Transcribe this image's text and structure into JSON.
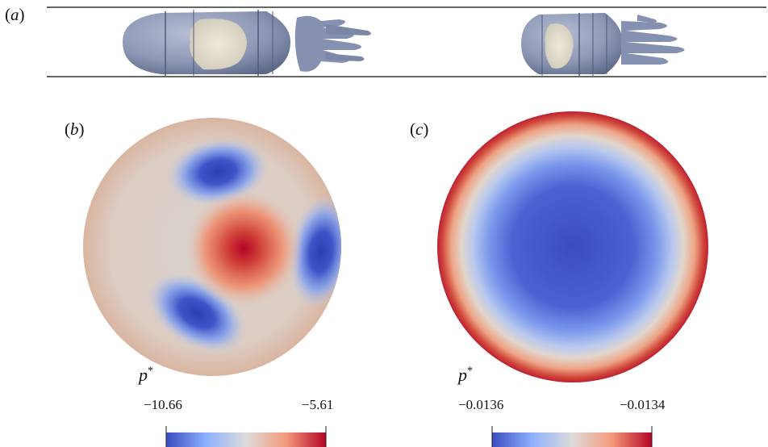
{
  "panels": {
    "a": {
      "label_open": "(",
      "letter": "a",
      "label_close": ")"
    },
    "b": {
      "label_open": "(",
      "letter": "b",
      "label_close": ")",
      "colorbar": {
        "symbol": "p",
        "superscript": "*",
        "min": "−10.66",
        "max": "−5.61"
      }
    },
    "c": {
      "label_open": "(",
      "letter": "c",
      "label_close": ")",
      "colorbar": {
        "symbol": "p",
        "superscript": "*",
        "min": "−0.0136",
        "max": "−0.0134"
      }
    }
  },
  "colors": {
    "cool": "#3a4cc0",
    "neutral": "#dddcdb",
    "warm": "#b40426",
    "body_surface": "#8e98b6",
    "core_surface": "#ddd9c8",
    "pipe_wall": "#666666"
  }
}
